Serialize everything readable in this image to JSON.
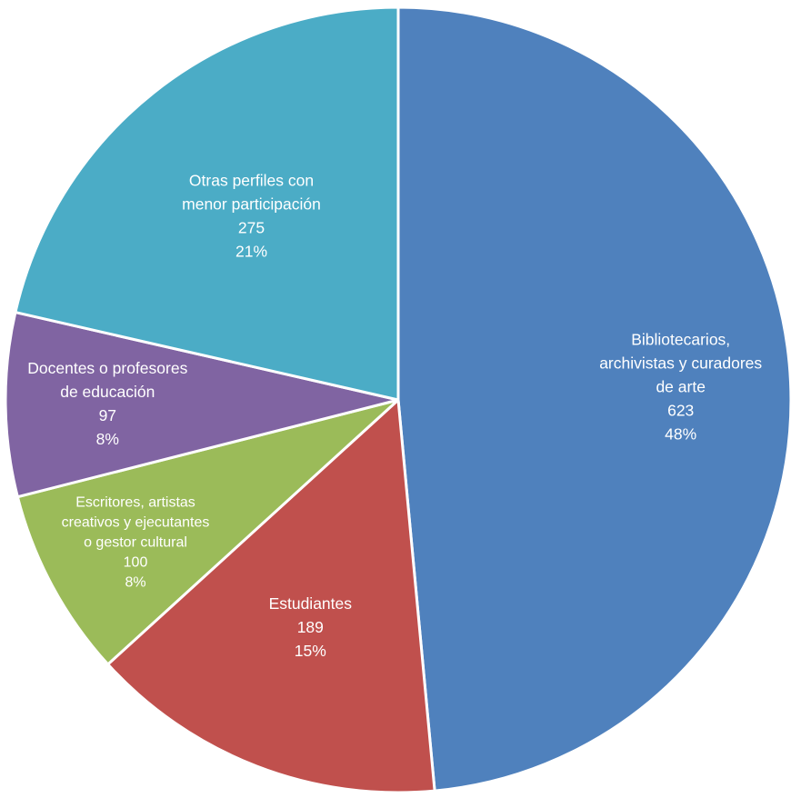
{
  "chart_data": {
    "type": "pie",
    "title": "",
    "start_angle_deg": 0,
    "direction": "clockwise",
    "slices": [
      {
        "name": "bibliotecarios",
        "label_lines": [
          "Bibliotecarios,",
          "archivistas y curadores",
          "de arte"
        ],
        "value": 623,
        "value_label": "623",
        "percent_label": "48%",
        "color": "#4F81BD"
      },
      {
        "name": "estudiantes",
        "label_lines": [
          "Estudiantes"
        ],
        "value": 189,
        "value_label": "189",
        "percent_label": "15%",
        "color": "#C0504D"
      },
      {
        "name": "escritores",
        "label_lines": [
          "Escritores, artistas",
          "creativos y ejecutantes",
          "o gestor cultural"
        ],
        "value": 100,
        "value_label": "100",
        "percent_label": "8%",
        "color": "#9BBB59"
      },
      {
        "name": "docentes",
        "label_lines": [
          "Docentes o profesores",
          "de educación"
        ],
        "value": 97,
        "value_label": "97",
        "percent_label": "8%",
        "color": "#8064A2"
      },
      {
        "name": "otras",
        "label_lines": [
          "Otras perfiles con",
          "menor participación"
        ],
        "value": 275,
        "value_label": "275",
        "percent_label": "21%",
        "color": "#4BACC6"
      }
    ]
  }
}
